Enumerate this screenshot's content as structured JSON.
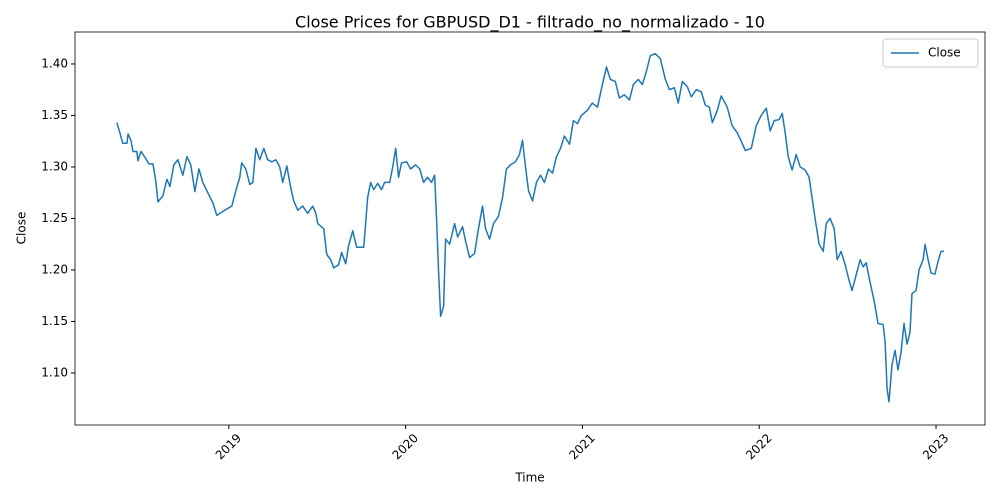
{
  "chart_data": {
    "type": "line",
    "title": "Close Prices for GBPUSD_D1 - filtrado_no_normalizado - 10",
    "xlabel": "Time",
    "ylabel": "Close",
    "legend": "upper right",
    "xlim": [
      2018.13,
      2023.277
    ],
    "xticks": [
      2019,
      2020,
      2021,
      2022,
      2023
    ],
    "ylim": [
      1.0495,
      1.431
    ],
    "yticks": [
      {
        "value": 1.1,
        "label": "1.10"
      },
      1.15,
      {
        "value": 1.2,
        "label": "1.20"
      },
      1.25,
      {
        "value": 1.3,
        "label": "1.30"
      },
      1.35,
      {
        "value": 1.4,
        "label": "1.40"
      }
    ],
    "x": [
      2018.367,
      2018.384,
      2018.4,
      2018.424,
      2018.43,
      2018.446,
      2018.458,
      2018.48,
      2018.486,
      2018.503,
      2018.531,
      2018.548,
      2018.571,
      2018.588,
      2018.599,
      2018.627,
      2018.65,
      2018.667,
      2018.689,
      2018.712,
      2018.74,
      2018.763,
      2018.785,
      2018.808,
      2018.831,
      2018.853,
      2018.881,
      2018.91,
      2018.932,
      2018.977,
      2019.017,
      2019.04,
      2019.062,
      2019.073,
      2019.096,
      2019.119,
      2019.136,
      2019.153,
      2019.175,
      2019.198,
      2019.22,
      2019.243,
      2019.266,
      2019.288,
      2019.305,
      2019.328,
      2019.35,
      2019.367,
      2019.39,
      2019.418,
      2019.446,
      2019.475,
      2019.492,
      2019.503,
      2019.537,
      2019.554,
      2019.576,
      2019.593,
      2019.621,
      2019.638,
      2019.661,
      2019.678,
      2019.701,
      2019.723,
      2019.763,
      2019.774,
      2019.785,
      2019.802,
      2019.819,
      2019.842,
      2019.864,
      2019.881,
      2019.91,
      2019.927,
      2019.944,
      2019.96,
      2019.977,
      2020.006,
      2020.028,
      2020.056,
      2020.08,
      2020.102,
      2020.124,
      2020.147,
      2020.164,
      2020.175,
      2020.186,
      2020.198,
      2020.215,
      2020.226,
      2020.249,
      2020.277,
      2020.294,
      2020.322,
      2020.339,
      2020.362,
      2020.39,
      2020.412,
      2020.435,
      2020.452,
      2020.475,
      2020.497,
      2020.525,
      2020.548,
      2020.57,
      2020.593,
      2020.621,
      2020.644,
      2020.661,
      2020.678,
      2020.695,
      2020.718,
      2020.74,
      2020.763,
      2020.785,
      2020.808,
      2020.831,
      2020.853,
      2020.876,
      2020.898,
      2020.927,
      2020.949,
      2020.972,
      2020.994,
      2021.028,
      2021.056,
      2021.085,
      2021.113,
      2021.136,
      2021.158,
      2021.186,
      2021.209,
      2021.237,
      2021.266,
      2021.288,
      2021.316,
      2021.339,
      2021.362,
      2021.384,
      2021.412,
      2021.441,
      2021.469,
      2021.492,
      2021.52,
      2021.542,
      2021.565,
      2021.593,
      2021.616,
      2021.644,
      2021.672,
      2021.695,
      2021.718,
      2021.735,
      2021.763,
      2021.785,
      2021.819,
      2021.847,
      2021.876,
      2021.898,
      2021.921,
      2021.955,
      2021.983,
      2022.011,
      2022.04,
      2022.062,
      2022.085,
      2022.113,
      2022.13,
      2022.147,
      2022.164,
      2022.186,
      2022.209,
      2022.232,
      2022.26,
      2022.282,
      2022.299,
      2022.316,
      2022.339,
      2022.362,
      2022.379,
      2022.401,
      2022.424,
      2022.441,
      2022.463,
      2022.486,
      2022.508,
      2022.525,
      2022.548,
      2022.571,
      2022.588,
      2022.605,
      2022.627,
      2022.65,
      2022.672,
      2022.701,
      2022.712,
      2022.723,
      2022.734,
      2022.751,
      2022.768,
      2022.785,
      2022.802,
      2022.819,
      2022.836,
      2022.853,
      2022.864,
      2022.887,
      2022.904,
      2022.927,
      2022.938,
      2022.955,
      2022.972,
      2022.994,
      2023.011,
      2023.028,
      2023.045
    ],
    "series": [
      {
        "name": "Close",
        "color": "#1f77b4",
        "values": [
          1.343,
          1.333,
          1.323,
          1.323,
          1.332,
          1.326,
          1.315,
          1.315,
          1.306,
          1.315,
          1.308,
          1.303,
          1.303,
          1.285,
          1.266,
          1.272,
          1.288,
          1.281,
          1.302,
          1.307,
          1.292,
          1.31,
          1.302,
          1.276,
          1.298,
          1.285,
          1.275,
          1.265,
          1.253,
          1.258,
          1.262,
          1.277,
          1.29,
          1.304,
          1.298,
          1.283,
          1.285,
          1.318,
          1.307,
          1.318,
          1.307,
          1.305,
          1.307,
          1.3,
          1.285,
          1.301,
          1.28,
          1.267,
          1.258,
          1.262,
          1.255,
          1.262,
          1.255,
          1.245,
          1.24,
          1.215,
          1.21,
          1.202,
          1.205,
          1.217,
          1.206,
          1.224,
          1.238,
          1.222,
          1.222,
          1.245,
          1.27,
          1.285,
          1.278,
          1.284,
          1.278,
          1.285,
          1.285,
          1.3,
          1.318,
          1.29,
          1.304,
          1.305,
          1.298,
          1.302,
          1.298,
          1.285,
          1.29,
          1.285,
          1.292,
          1.25,
          1.2,
          1.155,
          1.165,
          1.23,
          1.225,
          1.245,
          1.232,
          1.242,
          1.228,
          1.212,
          1.216,
          1.24,
          1.262,
          1.24,
          1.23,
          1.245,
          1.252,
          1.27,
          1.298,
          1.302,
          1.305,
          1.312,
          1.326,
          1.3,
          1.277,
          1.267,
          1.285,
          1.292,
          1.285,
          1.298,
          1.294,
          1.31,
          1.318,
          1.33,
          1.322,
          1.345,
          1.342,
          1.35,
          1.355,
          1.362,
          1.358,
          1.38,
          1.397,
          1.385,
          1.383,
          1.367,
          1.37,
          1.365,
          1.38,
          1.385,
          1.38,
          1.393,
          1.408,
          1.41,
          1.405,
          1.385,
          1.375,
          1.377,
          1.362,
          1.383,
          1.378,
          1.368,
          1.375,
          1.373,
          1.36,
          1.358,
          1.343,
          1.355,
          1.369,
          1.358,
          1.34,
          1.333,
          1.325,
          1.316,
          1.318,
          1.34,
          1.35,
          1.357,
          1.335,
          1.345,
          1.346,
          1.352,
          1.333,
          1.31,
          1.297,
          1.312,
          1.3,
          1.297,
          1.29,
          1.27,
          1.25,
          1.225,
          1.218,
          1.245,
          1.25,
          1.24,
          1.21,
          1.218,
          1.205,
          1.19,
          1.18,
          1.195,
          1.21,
          1.203,
          1.207,
          1.188,
          1.17,
          1.148,
          1.147,
          1.13,
          1.085,
          1.072,
          1.108,
          1.122,
          1.103,
          1.12,
          1.148,
          1.128,
          1.14,
          1.177,
          1.18,
          1.2,
          1.21,
          1.225,
          1.21,
          1.197,
          1.196,
          1.208,
          1.218,
          1.218
        ]
      }
    ]
  }
}
